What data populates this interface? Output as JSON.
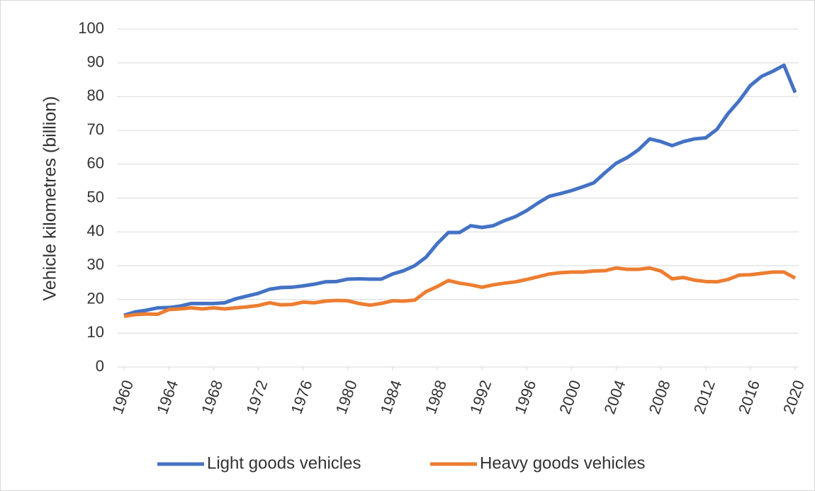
{
  "chart_data": {
    "type": "line",
    "y_label": "Vehicle kilometres (billion)",
    "x": [
      1960,
      1961,
      1962,
      1963,
      1964,
      1965,
      1966,
      1967,
      1968,
      1969,
      1970,
      1971,
      1972,
      1973,
      1974,
      1975,
      1976,
      1977,
      1978,
      1979,
      1980,
      1981,
      1982,
      1983,
      1984,
      1985,
      1986,
      1987,
      1988,
      1989,
      1990,
      1991,
      1992,
      1993,
      1994,
      1995,
      1996,
      1997,
      1998,
      1999,
      2000,
      2001,
      2002,
      2003,
      2004,
      2005,
      2006,
      2007,
      2008,
      2009,
      2010,
      2011,
      2012,
      2013,
      2014,
      2015,
      2016,
      2017,
      2018,
      2019,
      2020
    ],
    "series": [
      {
        "name": "Light goods vehicles",
        "color": "#4472c4",
        "values": [
          15.3,
          16.3,
          16.8,
          17.5,
          17.6,
          18.0,
          18.8,
          18.8,
          18.8,
          19.0,
          20.2,
          21.0,
          21.8,
          23.0,
          23.5,
          23.6,
          24.0,
          24.5,
          25.2,
          25.3,
          26.0,
          26.1,
          26.0,
          26.0,
          27.5,
          28.5,
          30.0,
          32.5,
          36.5,
          39.8,
          39.8,
          41.8,
          41.3,
          41.8,
          43.3,
          44.5,
          46.3,
          48.5,
          50.5,
          51.3,
          52.2,
          53.3,
          54.5,
          57.5,
          60.3,
          62.0,
          64.3,
          67.5,
          66.7,
          65.5,
          66.7,
          67.5,
          67.8,
          70.3,
          75.0,
          78.8,
          83.3,
          86.0,
          87.5,
          89.3,
          81.2
        ]
      },
      {
        "name": "Heavy goods vehicles",
        "color": "#ed7d31",
        "values": [
          15.0,
          15.5,
          15.7,
          15.6,
          17.0,
          17.2,
          17.5,
          17.2,
          17.5,
          17.2,
          17.5,
          17.8,
          18.2,
          19.0,
          18.4,
          18.5,
          19.2,
          19.0,
          19.5,
          19.7,
          19.6,
          18.8,
          18.3,
          18.8,
          19.6,
          19.5,
          19.8,
          22.3,
          23.8,
          25.6,
          24.8,
          24.3,
          23.6,
          24.3,
          24.8,
          25.2,
          25.9,
          26.7,
          27.5,
          27.9,
          28.1,
          28.1,
          28.4,
          28.5,
          29.3,
          28.9,
          28.9,
          29.3,
          28.4,
          26.1,
          26.5,
          25.7,
          25.3,
          25.2,
          25.9,
          27.2,
          27.3,
          27.7,
          28.1,
          28.1,
          26.3
        ]
      }
    ],
    "xlim": [
      1960,
      2020
    ],
    "xticks": [
      1960,
      1964,
      1968,
      1972,
      1976,
      1980,
      1984,
      1988,
      1992,
      1996,
      2000,
      2004,
      2008,
      2012,
      2016,
      2020
    ],
    "ylim": [
      0,
      100
    ],
    "yticks": [
      0,
      10,
      20,
      30,
      40,
      50,
      60,
      70,
      80,
      90,
      100
    ],
    "grid": true,
    "legend": "bottom"
  }
}
